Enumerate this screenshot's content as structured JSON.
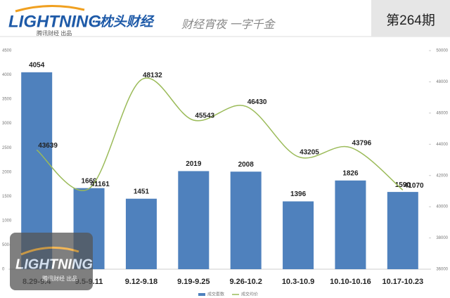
{
  "header": {
    "logo": "LIGHTNING",
    "logo_sub": "腾讯财经 出品",
    "brand": "· 枕头财经",
    "slogan": "财经宵夜 一字千金",
    "issue": "第264期"
  },
  "chart_data": {
    "type": "bar",
    "categories": [
      "8.29-9.4",
      "9.5-9.11",
      "9.12-9.18",
      "9.19-9.25",
      "9.26-10.2",
      "10.3-10.9",
      "10.10-10.16",
      "10.17-10.23"
    ],
    "series": [
      {
        "name": "成交套数",
        "color": "#4f81bd",
        "type": "bar",
        "values": [
          4054,
          1669,
          1451,
          2019,
          2008,
          1396,
          1826,
          1590
        ]
      },
      {
        "name": "成交均价",
        "color": "#9bbb59",
        "type": "line",
        "axis": "y2",
        "values": [
          43639,
          41161,
          48132,
          45543,
          46430,
          43205,
          43796,
          41070
        ]
      }
    ],
    "ylim": [
      0,
      4500
    ],
    "yticks": [
      0,
      500,
      1000,
      1500,
      2000,
      2500,
      3000,
      3500,
      4000,
      4500
    ],
    "y2lim": [
      36000,
      50000
    ],
    "y2ticks": [
      36000,
      38000,
      40000,
      42000,
      44000,
      46000,
      48000,
      50000
    ],
    "legend": "bottom"
  }
}
